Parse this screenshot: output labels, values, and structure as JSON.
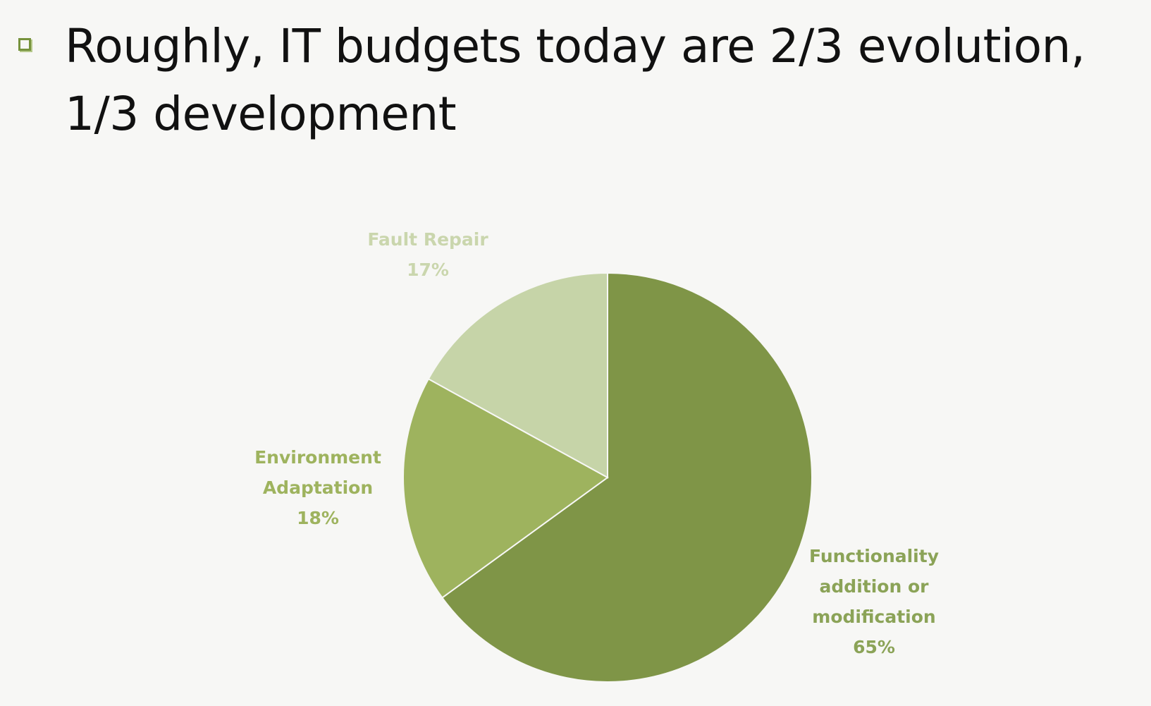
{
  "bullet": {
    "text": "Roughly, IT budgets today are 2/3 evolution, 1/3 development",
    "icon": "hollow-square-bullet-icon",
    "icon_color": "#76923c"
  },
  "chart_data": {
    "type": "pie",
    "title": "",
    "slices": [
      {
        "label_lines": [
          "Functionality",
          "addition or",
          "modification"
        ],
        "value": 65,
        "value_label": "65%",
        "color": "#7f9547",
        "label_color": "#8ba357"
      },
      {
        "label_lines": [
          "Environment",
          "Adaptation"
        ],
        "value": 18,
        "value_label": "18%",
        "color": "#9eb35e",
        "label_color": "#9eb35e"
      },
      {
        "label_lines": [
          "Fault Repair"
        ],
        "value": 17,
        "value_label": "17%",
        "color": "#c6d4a8",
        "label_color": "#cad6ad"
      }
    ]
  }
}
